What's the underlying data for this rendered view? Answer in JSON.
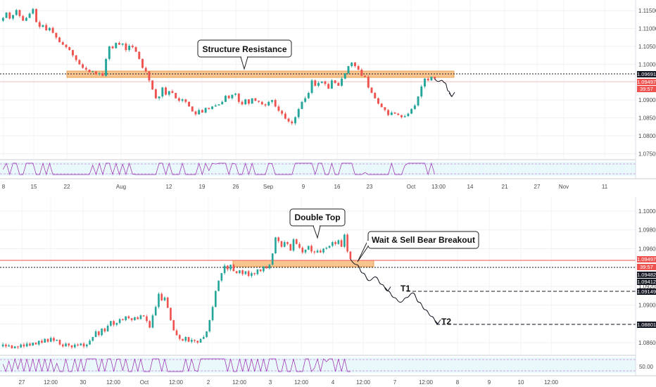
{
  "chart_data": [
    {
      "type": "candlestick",
      "title": "",
      "ylim": [
        1.0735,
        1.118
      ],
      "y_ticks": [
        "1.11500",
        "1.11000",
        "1.10500",
        "1.10000",
        "1.09500",
        "1.09000",
        "1.08500",
        "1.08000",
        "1.07500"
      ],
      "x_ticks": [
        "8",
        "15",
        "22",
        "Aug",
        "12",
        "19",
        "26",
        "Sep",
        "9",
        "16",
        "23",
        "Oct",
        "13:00",
        "14",
        "21",
        "27",
        "Nov",
        "11"
      ],
      "price_tags": {
        "resistance": "1.09691",
        "last": "1.09497",
        "countdown": "39:57"
      },
      "colors": {
        "up": "#26a69a",
        "down": "#ef5350",
        "zone": "#f6b26b",
        "tag_dark": "#131722",
        "tag_red": "#ef5350"
      },
      "resistance_level": 1.0969,
      "annotation": "Structure Resistance",
      "close_path": [
        1.113,
        1.1145,
        1.1128,
        1.1138,
        1.1152,
        1.1135,
        1.1122,
        1.113,
        1.1142,
        1.1155,
        1.1118,
        1.1105,
        1.111,
        1.1095,
        1.1102,
        1.1088,
        1.1075,
        1.1062,
        1.1055,
        1.1048,
        1.104,
        1.1025,
        1.1012,
        1.1,
        1.099,
        1.0985,
        1.0978,
        1.098,
        1.0972,
        1.0975,
        1.0968,
        1.1015,
        1.105,
        1.1045,
        1.106,
        1.1055,
        1.1058,
        1.104,
        1.1052,
        1.1048,
        1.1035,
        1.1015,
        1.099,
        1.098,
        1.0955,
        1.093,
        1.0905,
        1.091,
        1.0935,
        1.0915,
        1.0925,
        1.092,
        1.0905,
        1.0898,
        1.0902,
        1.0895,
        1.0882,
        1.0868,
        1.086,
        1.0872,
        1.0865,
        1.0878,
        1.0875,
        1.0882,
        1.0885,
        1.0888,
        1.0895,
        1.0912,
        1.0905,
        1.0915,
        1.0918,
        1.0895,
        1.0888,
        1.0902,
        1.089,
        1.0905,
        1.0898,
        1.0895,
        1.0888,
        1.0885,
        1.0895,
        1.09,
        1.0882,
        1.087,
        1.0862,
        1.0848,
        1.084,
        1.0835,
        1.0852,
        1.0875,
        1.0895,
        1.0905,
        1.092,
        1.0955,
        1.094,
        1.0948,
        1.0952,
        1.0945,
        1.0932,
        1.0955,
        1.0948,
        1.094,
        1.096,
        1.0975,
        1.0995,
        1.1005,
        1.0995,
        1.0985,
        1.0968,
        1.0965,
        1.0935,
        1.092,
        1.0905,
        1.089,
        1.088,
        1.0872,
        1.0858,
        1.0865,
        1.0862,
        1.0858,
        1.0852,
        1.0855,
        1.0862,
        1.0875,
        1.0885,
        1.091,
        1.0938,
        1.096,
        1.0955,
        1.0965,
        1.096
      ],
      "projection": [
        1.096,
        1.0952,
        1.0955,
        1.0948,
        1.0925,
        1.091
      ]
    },
    {
      "type": "candlestick",
      "title": "",
      "ylim": [
        1.0848,
        1.1015
      ],
      "y_ticks": [
        "1.10000",
        "1.09800",
        "1.09600",
        "1.09400",
        "1.09200",
        "1.09000",
        "1.08800",
        "1.08600"
      ],
      "x_ticks": [
        "27",
        "12:00",
        "30",
        "12:00",
        "Oct",
        "12:00",
        "2",
        "12:00",
        "3",
        "12:00",
        "4",
        "12:00",
        "7",
        "12:00",
        "8",
        "9",
        "10",
        "12:00"
      ],
      "price_tags": {
        "last": "1.09497",
        "countdown": "39:57",
        "t_a": "1.09482",
        "t_b": "1.09412",
        "t1": "1.09149",
        "t2": "1.08801"
      },
      "support_level": 1.0947,
      "targets": [
        {
          "label": "T1",
          "value": 1.0915
        },
        {
          "label": "T2",
          "value": 1.088
        }
      ],
      "annotations": [
        "Double Top",
        "Wait & Sell Bear Breakout"
      ],
      "close_path": [
        1.0858,
        1.0856,
        1.0857,
        1.0854,
        1.0856,
        1.0855,
        1.0858,
        1.0856,
        1.0859,
        1.0857,
        1.086,
        1.0858,
        1.0862,
        1.086,
        1.0864,
        1.0861,
        1.0865,
        1.0862,
        1.0863,
        1.0858,
        1.0856,
        1.0859,
        1.0857,
        1.0855,
        1.0858,
        1.0857,
        1.0859,
        1.0856,
        1.0858,
        1.0862,
        1.0866,
        1.0872,
        1.0868,
        1.0875,
        1.0872,
        1.0878,
        1.0883,
        1.0879,
        1.0881,
        1.0885,
        1.0884,
        1.0888,
        1.0886,
        1.0884,
        1.0887,
        1.0885,
        1.0889,
        1.0888,
        1.0883,
        1.0876,
        1.0889,
        1.0898,
        1.0912,
        1.0905,
        1.0908,
        1.0897,
        1.0884,
        1.0873,
        1.0868,
        1.0864,
        1.0862,
        1.0866,
        1.0861,
        1.0863,
        1.0862,
        1.086,
        1.0864,
        1.0866,
        1.0872,
        1.0884,
        1.0898,
        1.0915,
        1.0926,
        1.0934,
        1.0942,
        1.0938,
        1.0943,
        1.0936,
        1.0934,
        1.0937,
        1.0933,
        1.0936,
        1.0931,
        1.0934,
        1.0933,
        1.0938,
        1.0936,
        1.0941,
        1.0939,
        1.0943,
        1.0955,
        1.0972,
        1.0968,
        1.0962,
        1.0967,
        1.0965,
        1.0958,
        1.097,
        1.0965,
        1.0961,
        1.0956,
        1.0959,
        1.0963,
        1.0957,
        1.0956,
        1.0958,
        1.0956,
        1.096,
        1.0961,
        1.0963,
        1.0967,
        1.0965,
        1.0969,
        1.0962,
        1.0975,
        1.0957,
        1.0949
      ],
      "projection": [
        1.0949,
        1.0943,
        1.0934,
        1.0926,
        1.093,
        1.0922,
        1.0915,
        1.0908,
        1.0903,
        1.0908,
        1.0913,
        1.0903,
        1.0895,
        1.0888,
        1.088
      ]
    }
  ]
}
